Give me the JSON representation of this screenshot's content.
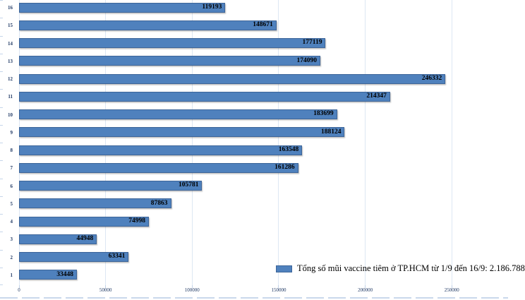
{
  "chart_data": {
    "type": "bar",
    "orientation": "horizontal",
    "title": "",
    "legend_label": "Tổng số mũi vaccine tiêm ở TP.HCM từ 1/9 đến 16/9: 2.186.788",
    "legend_position": "bottom-right",
    "categories": [
      "1",
      "2",
      "3",
      "4",
      "5",
      "6",
      "7",
      "8",
      "9",
      "10",
      "11",
      "12",
      "13",
      "14",
      "15",
      "16"
    ],
    "values": [
      33448,
      63341,
      44948,
      74998,
      87863,
      105781,
      161286,
      163548,
      188124,
      183699,
      214347,
      246332,
      174090,
      177119,
      148671,
      119193
    ],
    "category_order_on_screen": "16 at top, 1 at bottom",
    "value_labels_shown": true,
    "x_ticks": [
      "0",
      "50000",
      "100000",
      "150000",
      "200000",
      "250000"
    ],
    "x_tick_values": [
      0,
      50000,
      100000,
      150000,
      200000,
      250000
    ],
    "xlim": [
      0,
      282500
    ],
    "grid": "vertical",
    "total": "2.186.788",
    "colors": {
      "bar_fill": "#4F81BD",
      "bar_border": "#3d6599",
      "gridline": "#dde7f3",
      "axis_text": "#1F3864",
      "value_label": "#000000",
      "background": "#ffffff"
    }
  }
}
